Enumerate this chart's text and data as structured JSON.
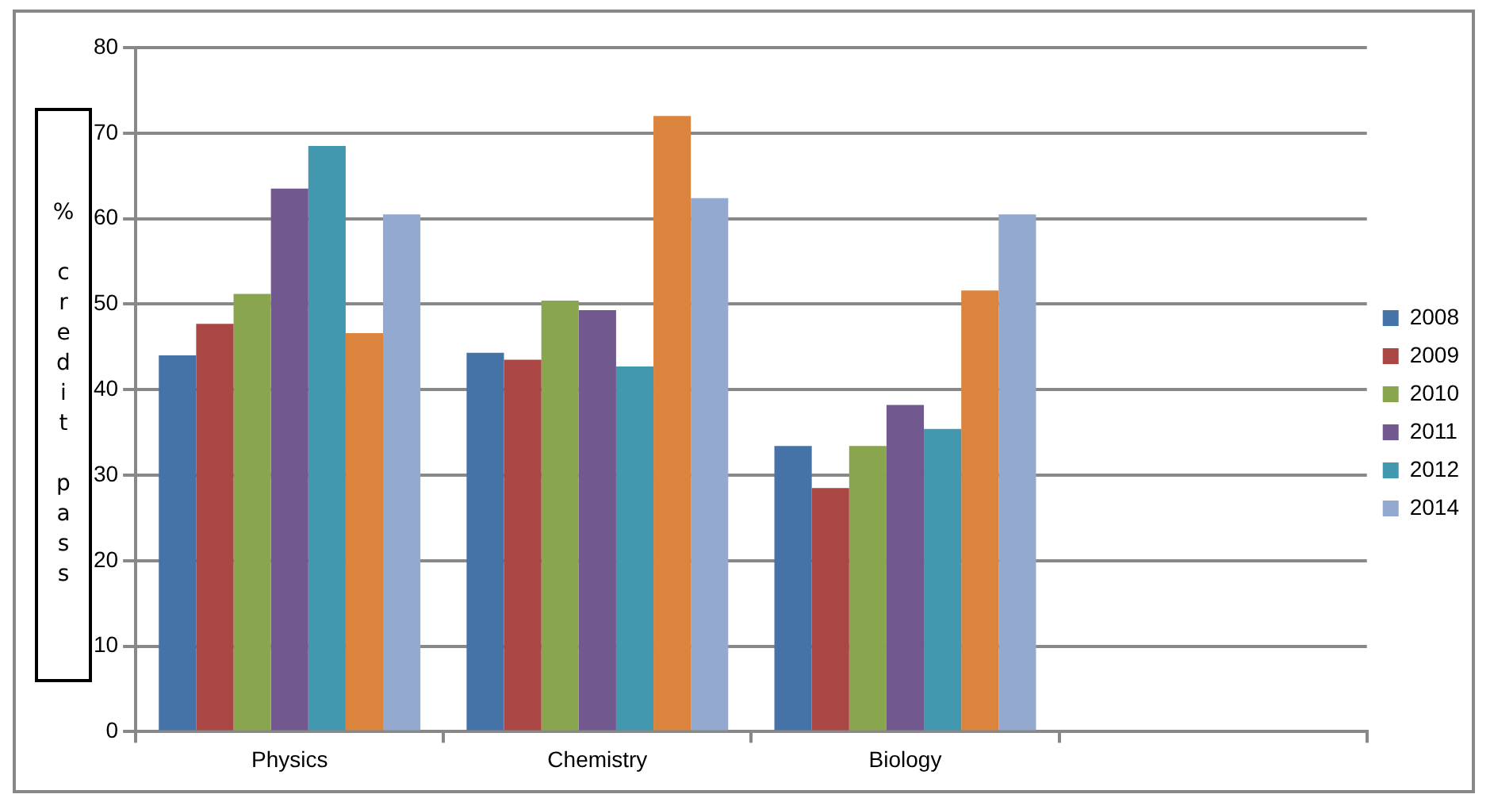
{
  "chart_data": {
    "type": "bar",
    "ylabel": "% credit pass",
    "categories": [
      "Physics",
      "Chemistry",
      "Biology",
      null
    ],
    "series": [
      {
        "name": "2008",
        "color": "#4572a7",
        "values": [
          44,
          44.3,
          33.4,
          null
        ]
      },
      {
        "name": "2009",
        "color": "#aa4643",
        "values": [
          47.7,
          43.5,
          28.5,
          null
        ]
      },
      {
        "name": "2010",
        "color": "#89a54e",
        "values": [
          51.2,
          50.4,
          33.4,
          null
        ]
      },
      {
        "name": "2011",
        "color": "#71588f",
        "values": [
          63.5,
          49.3,
          38.2,
          null
        ]
      },
      {
        "name": "2012",
        "color": "#4198af",
        "values": [
          68.5,
          42.7,
          35.4,
          null
        ]
      },
      {
        "color": "#db843d",
        "values": [
          46.6,
          72,
          51.6,
          null
        ]
      },
      {
        "name": "2014",
        "color": "#93a9cf",
        "values": [
          60.5,
          62.4,
          60.5,
          null
        ]
      }
    ],
    "ylim": [
      0,
      80
    ],
    "yticks": [
      0,
      10,
      20,
      30,
      40,
      50,
      60,
      70,
      80
    ],
    "grid": "y",
    "legend": "right"
  }
}
